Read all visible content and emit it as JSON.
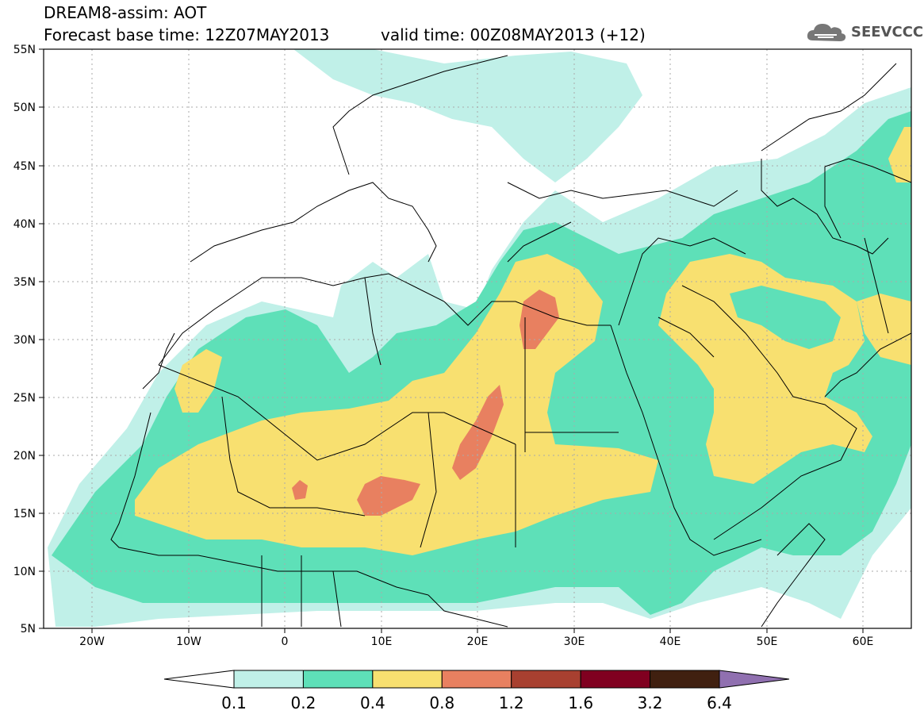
{
  "header": {
    "title": "DREAM8-assim: AOT",
    "base_time": "Forecast base time: 12Z07MAY2013",
    "valid_time": "valid time: 00Z08MAY2013 (+12)",
    "logo_text": "SEEVCCC"
  },
  "map": {
    "region": "North Africa, Europe and Middle East",
    "lat_labels": [
      "55N",
      "50N",
      "45N",
      "40N",
      "35N",
      "30N",
      "25N",
      "20N",
      "15N",
      "10N",
      "5N"
    ],
    "lon_labels": [
      "20W",
      "10W",
      "0",
      "10E",
      "20E",
      "30E",
      "40E",
      "50E",
      "60E"
    ],
    "gridlines": "dotted",
    "coastline_color": "#000000"
  },
  "colorbar": {
    "labels": [
      "0.1",
      "0.2",
      "0.4",
      "0.8",
      "1.2",
      "1.6",
      "3.2",
      "6.4"
    ],
    "colors": [
      "#ffffff",
      "#c0f0e8",
      "#5ee0b8",
      "#f8e070",
      "#e88060",
      "#a84030",
      "#800020",
      "#402010",
      "#9070b0"
    ]
  }
}
